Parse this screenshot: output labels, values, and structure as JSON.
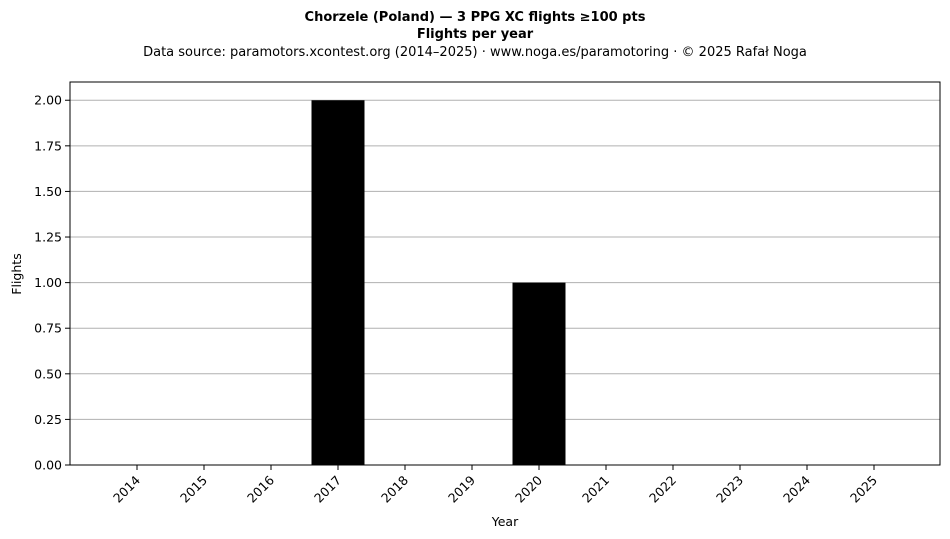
{
  "chart_data": {
    "type": "bar",
    "title": "Chorzele (Poland)  —  3 PPG XC flights ≥100 pts",
    "subtitle": "Flights per year",
    "source_note": "Data source: paramotors.xcontest.org (2014–2025)  ·  www.noga.es/paramotoring  ·  © 2025 Rafał Noga",
    "xlabel": "Year",
    "ylabel": "Flights",
    "categories": [
      "2014",
      "2015",
      "2016",
      "2017",
      "2018",
      "2019",
      "2020",
      "2021",
      "2022",
      "2023",
      "2024",
      "2025"
    ],
    "values": [
      0,
      0,
      0,
      2,
      0,
      0,
      1,
      0,
      0,
      0,
      0,
      0
    ],
    "ylim": [
      0,
      2.1
    ],
    "yticks": [
      "0.00",
      "0.25",
      "0.50",
      "0.75",
      "1.00",
      "1.25",
      "1.50",
      "1.75",
      "2.00"
    ],
    "grid": "y",
    "bar_color": "#000000",
    "grid_color": "#b0b0b0"
  }
}
